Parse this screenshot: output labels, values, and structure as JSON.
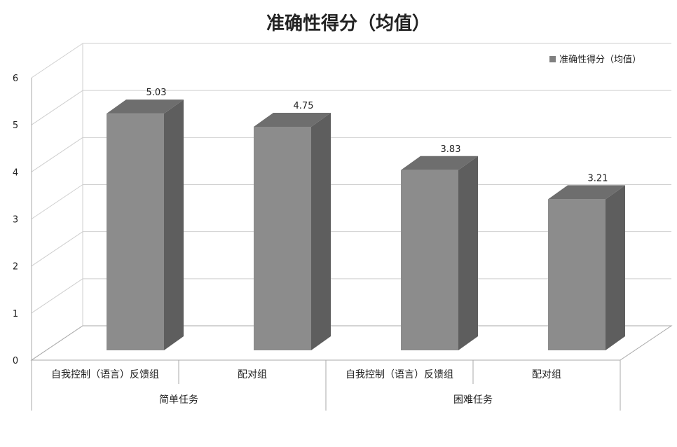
{
  "chart_data": {
    "type": "bar",
    "title": "准确性得分（均值）",
    "legend": {
      "position": "top-right",
      "label": "准确性得分（均值）"
    },
    "categories": [
      {
        "label": "自我控制（语言）反馈组",
        "group": "简单任务"
      },
      {
        "label": "配对组",
        "group": "简单任务"
      },
      {
        "label": "自我控制（语言）反馈组",
        "group": "困难任务"
      },
      {
        "label": "配对组",
        "group": "困难任务"
      }
    ],
    "groups": [
      "简单任务",
      "困难任务"
    ],
    "series": [
      {
        "name": "准确性得分（均值）",
        "values": [
          5.03,
          4.75,
          3.83,
          3.21
        ],
        "data_labels": [
          "5.03",
          "4.75",
          "3.83",
          "3.21"
        ]
      }
    ],
    "ylim": [
      0,
      6
    ],
    "yticks": [
      "0",
      "1",
      "2",
      "3",
      "4",
      "5",
      "6"
    ],
    "grid": true,
    "style": "3d-column",
    "colors": {
      "bar_front": "#8c8c8c",
      "bar_side": "#5e5e5e",
      "bar_top": "#6e6e6e",
      "legend_marker": "#808080"
    }
  }
}
